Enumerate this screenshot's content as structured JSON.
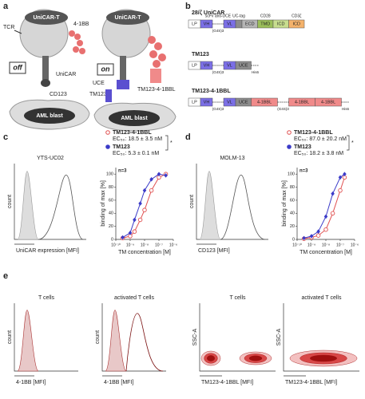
{
  "panels": {
    "a": {
      "label": "a",
      "tcr": "TCR",
      "unicar_t_off": "UniCAR-T",
      "bb": "4-1BB",
      "off": "off",
      "unicar": "UniCAR",
      "cd123": "CD123",
      "aml_off": "AML blast",
      "on": "on",
      "unicar_t_on": "UniCAR-T",
      "uce": "UCE",
      "tm123": "TM123",
      "tm123_41bbl": "TM123-4-1BBL",
      "aml_on": "AML blast"
    },
    "b": {
      "label": "b",
      "constructs": [
        {
          "name": "28/ζ UniCAR",
          "annotations": [
            "scFv anti-UCE",
            "UC-tag",
            "CD28",
            "CD3ζ"
          ],
          "segments": [
            {
              "text": "LP",
              "color": "#ffffff"
            },
            {
              "text": "VH",
              "color": "#7b6fe6"
            },
            {
              "text": "(G4S)3"
            },
            {
              "text": "VL",
              "color": "#7b6fe6"
            },
            {
              "color": "#8c8c8c"
            },
            {
              "text": "ECD",
              "color": "#b5b5b5"
            },
            {
              "text": "TMD",
              "color": "#9bbf5a"
            },
            {
              "text": "ICD",
              "color": "#c7dd8e"
            },
            {
              "text": "ICD",
              "color": "#f4b26b"
            }
          ]
        },
        {
          "name": "TM123",
          "segments": [
            {
              "text": "LP",
              "color": "#ffffff"
            },
            {
              "text": "VH",
              "color": "#7b6fe6"
            },
            {
              "text": "(G4S)3"
            },
            {
              "text": "VL",
              "color": "#7b6fe6"
            },
            {
              "text": "UCE",
              "color": "#8c8c8c"
            },
            {
              "text": "His6"
            }
          ]
        },
        {
          "name": "TM123-4-1BBL",
          "segments": [
            {
              "text": "LP",
              "color": "#ffffff"
            },
            {
              "text": "VH",
              "color": "#7b6fe6"
            },
            {
              "text": "(G4S)3"
            },
            {
              "text": "VL",
              "color": "#7b6fe6"
            },
            {
              "text": "UCE",
              "color": "#8c8c8c"
            },
            {
              "text": "4-1BBL",
              "color": "#f08a8a"
            },
            {
              "text": "(G4S)3"
            },
            {
              "text": "4-1BBL",
              "color": "#f08a8a"
            },
            {
              "text": "4-1BBL",
              "color": "#f08a8a"
            },
            {
              "text": "His6"
            }
          ]
        }
      ]
    },
    "c": {
      "label": "c",
      "cell_line": "YTS-UC02",
      "hist_ylabel": "count",
      "hist_xlabel": "UniCAR expression [MFI]",
      "chart_data": {
        "type": "line",
        "n": "n=3",
        "significance": "*",
        "ylabel": "binding of max [%]",
        "xlabel": "TM concentration [M]",
        "log_x": true,
        "xlim": [
          1e-10,
          1e-06
        ],
        "xticks": [
          {
            "value": 1e-10,
            "label": "10⁻¹⁰"
          },
          {
            "value": 1e-09,
            "label": "10⁻⁹"
          },
          {
            "value": 1e-08,
            "label": "10⁻⁸"
          },
          {
            "value": 1e-07,
            "label": "10⁻⁷"
          },
          {
            "value": 1e-06,
            "label": "10⁻⁶"
          }
        ],
        "ylim": [
          0,
          110
        ],
        "yticks": [
          0,
          20,
          40,
          60,
          80,
          100
        ],
        "x": [
          3e-10,
          1e-09,
          2e-09,
          5e-09,
          1e-08,
          3e-08,
          1e-07,
          3e-07
        ],
        "series": [
          {
            "name": "TM123-4-1BBL",
            "annotation": "EC₅₀: 18.5 ± 3.5 nM",
            "color": "#e05050",
            "values": [
              2,
              5,
              12,
              30,
              45,
              75,
              95,
              100
            ]
          },
          {
            "name": "TM123",
            "annotation": "EC₅₀: 5.3 ± 0.1 nM",
            "color": "#3b3bc8",
            "values": [
              3,
              10,
              30,
              55,
              75,
              92,
              100,
              98
            ]
          }
        ]
      }
    },
    "d": {
      "label": "d",
      "cell_line": "MOLM-13",
      "hist_ylabel": "count",
      "hist_xlabel": "CD123 [MFI]",
      "chart_data": {
        "type": "line",
        "n": "n=3",
        "significance": "*",
        "ylabel": "binding of max [%]",
        "xlabel": "TM concentration [M]",
        "log_x": true,
        "xlim": [
          1e-10,
          1e-06
        ],
        "xticks": [
          {
            "value": 1e-10,
            "label": "10⁻¹⁰"
          },
          {
            "value": 1e-09,
            "label": "10⁻⁹"
          },
          {
            "value": 1e-08,
            "label": "10⁻⁸"
          },
          {
            "value": 1e-07,
            "label": "10⁻⁷"
          },
          {
            "value": 1e-06,
            "label": "10⁻⁶"
          }
        ],
        "ylim": [
          0,
          110
        ],
        "yticks": [
          0,
          20,
          40,
          60,
          80,
          100
        ],
        "x": [
          3e-10,
          1e-09,
          3e-09,
          1e-08,
          3e-08,
          1e-07,
          2e-07
        ],
        "series": [
          {
            "name": "TM123-4-1BBL",
            "annotation": "EC₅₀: 87.0 ± 20.2 nM",
            "color": "#e05050",
            "values": [
              1,
              3,
              6,
              15,
              40,
              75,
              95
            ]
          },
          {
            "name": "TM123",
            "annotation": "EC₅₀: 18.2 ± 3.8 nM",
            "color": "#3b3bc8",
            "values": [
              2,
              5,
              12,
              35,
              70,
              95,
              100
            ]
          }
        ]
      }
    },
    "e": {
      "label": "e",
      "plots": [
        {
          "title": "T cells",
          "ylabel": "count",
          "xlabel": "4-1BB [MFI]"
        },
        {
          "title": "activated T cells",
          "ylabel": "count",
          "xlabel": "4-1BB [MFI]"
        },
        {
          "title": "T cells",
          "ylabel": "SSC-A",
          "xlabel": "TM123-4-1BBL [MFI]"
        },
        {
          "title": "activated T cells",
          "ylabel": "SSC-A",
          "xlabel": "TM123-4-1BBL [MFI]"
        }
      ]
    }
  }
}
